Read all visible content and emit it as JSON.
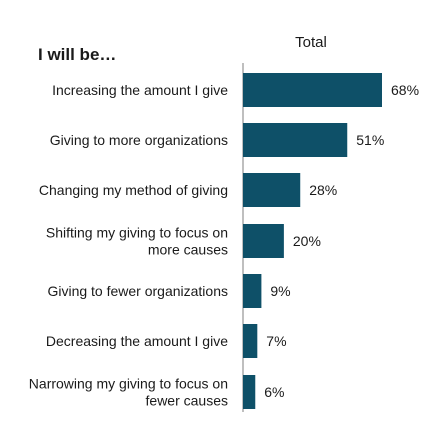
{
  "chart_data": {
    "type": "bar",
    "orientation": "horizontal",
    "title": "I will be…",
    "column_header": "Total",
    "categories": [
      [
        "Increasing the amount I give"
      ],
      [
        "Giving to more organizations"
      ],
      [
        "Changing my method of giving"
      ],
      [
        "Shifting my giving to focus on",
        "more causes"
      ],
      [
        "Giving to fewer organizations"
      ],
      [
        "Decreasing the amount I give"
      ],
      [
        "Narrowing my giving to focus on",
        "fewer causes"
      ]
    ],
    "series": [
      {
        "values": [
          68,
          51,
          28,
          20,
          9,
          7,
          6
        ],
        "value_labels": [
          "68%",
          "51%",
          "28%",
          "20%",
          "9%",
          "7%",
          "6%"
        ]
      }
    ],
    "bar_color": "#0e5068",
    "axis_line_color": "#7f7f7f",
    "xlim": [
      0,
      68
    ],
    "grid": false,
    "legend": "none"
  }
}
